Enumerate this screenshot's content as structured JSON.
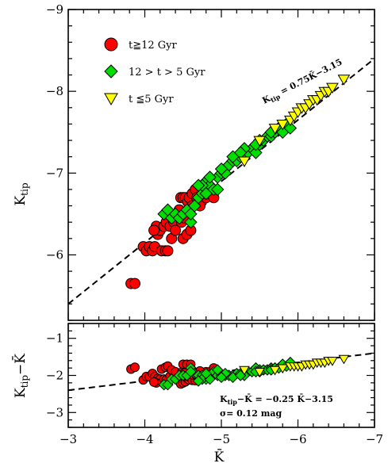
{
  "chart_data": [
    {
      "type": "scatter",
      "title": "",
      "xlabel": "K̄",
      "ylabel": "K_tip",
      "ylabel_main": "K",
      "ylabel_sub": "tip",
      "xlim": [
        -3,
        -7
      ],
      "ylim": [
        -5.2,
        -9
      ],
      "x_ticks": [
        "−3",
        "−4",
        "−5",
        "−6",
        "−7"
      ],
      "y_ticks": [
        "−9",
        "−8",
        "−7",
        "−6"
      ],
      "y_tick_values": [
        -9,
        -8,
        -7,
        -6
      ],
      "grid": false,
      "legend_position": "top-left",
      "fit_line": {
        "slope": 0.75,
        "intercept": -3.15,
        "label_main": "K",
        "label_sub": "tip",
        "label_rest": " = 0.75K̄−3.15"
      },
      "series": [
        {
          "name": "t≧12 Gyr",
          "marker": "circle",
          "color": "#ff0000",
          "x": [
            -3.82,
            -3.87,
            -3.98,
            -4.02,
            -4.06,
            -4.1,
            -4.13,
            -4.17,
            -4.2,
            -4.22,
            -4.27,
            -4.3,
            -4.15,
            -4.25,
            -4.12,
            -4.28,
            -4.33,
            -4.38,
            -4.42,
            -4.45,
            -4.47,
            -4.5,
            -4.53,
            -4.56,
            -4.58,
            -4.62,
            -4.66,
            -4.7,
            -4.74,
            -4.8,
            -4.85,
            -4.9,
            -4.5,
            -4.55,
            -4.6,
            -4.35,
            -4.4,
            -4.48,
            -4.52,
            -4.62,
            -4.68,
            -4.72
          ],
          "y": [
            -5.65,
            -5.65,
            -6.1,
            -6.05,
            -6.1,
            -6.05,
            -6.1,
            -6.25,
            -6.3,
            -6.05,
            -6.05,
            -6.05,
            -6.35,
            -6.35,
            -6.3,
            -6.4,
            -6.35,
            -6.4,
            -6.5,
            -6.55,
            -6.7,
            -6.7,
            -6.7,
            -6.65,
            -6.7,
            -6.75,
            -6.8,
            -6.7,
            -6.65,
            -6.7,
            -6.75,
            -6.7,
            -6.2,
            -6.25,
            -6.3,
            -6.2,
            -6.3,
            -6.4,
            -6.45,
            -6.6,
            -6.7,
            -6.6
          ]
        },
        {
          "name": "12 > t > 5 Gyr",
          "marker": "diamond",
          "color": "#00dd00",
          "x": [
            -4.25,
            -4.3,
            -4.35,
            -4.4,
            -4.45,
            -4.5,
            -4.55,
            -4.6,
            -4.65,
            -4.7,
            -4.75,
            -4.8,
            -4.85,
            -4.9,
            -4.95,
            -5.0,
            -5.05,
            -5.1,
            -5.15,
            -5.2,
            -5.25,
            -5.3,
            -5.35,
            -5.4,
            -5.45,
            -5.5,
            -5.55,
            -5.6,
            -5.65,
            -5.7,
            -5.75,
            -5.8,
            -5.85,
            -5.9,
            -4.75,
            -4.85,
            -4.95,
            -5.05,
            -5.15,
            -5.3,
            -5.5,
            -4.6,
            -4.7,
            -4.8,
            -5.0,
            -5.25,
            -5.45,
            -5.65
          ],
          "y": [
            -6.5,
            -6.55,
            -6.45,
            -6.5,
            -6.45,
            -6.5,
            -6.55,
            -6.4,
            -6.6,
            -6.7,
            -6.75,
            -6.9,
            -6.85,
            -6.8,
            -6.95,
            -7.0,
            -7.05,
            -7.1,
            -7.15,
            -7.15,
            -7.2,
            -7.2,
            -7.25,
            -7.3,
            -7.25,
            -7.35,
            -7.4,
            -7.45,
            -7.45,
            -7.5,
            -7.55,
            -7.5,
            -7.6,
            -7.55,
            -6.85,
            -6.95,
            -6.8,
            -7.0,
            -7.2,
            -7.3,
            -7.4,
            -6.5,
            -6.85,
            -6.75,
            -7.05,
            -7.25,
            -7.35,
            -7.5
          ]
        },
        {
          "name": "t ≦5 Gyr",
          "marker": "triangle-down",
          "color": "#ffff00",
          "x": [
            -5.3,
            -5.5,
            -5.7,
            -5.8,
            -5.9,
            -5.95,
            -6.0,
            -6.05,
            -6.1,
            -6.15,
            -6.2,
            -6.25,
            -6.3,
            -6.35,
            -6.4,
            -6.45,
            -6.6
          ],
          "y": [
            -7.15,
            -7.4,
            -7.55,
            -7.6,
            -7.65,
            -7.7,
            -7.75,
            -7.8,
            -7.8,
            -7.85,
            -7.9,
            -7.9,
            -7.95,
            -8.0,
            -8.0,
            -8.05,
            -8.15
          ]
        }
      ]
    },
    {
      "type": "scatter",
      "title": "",
      "xlabel": "K̄",
      "ylabel": "K_tip − K̄",
      "ylabel_main": "K",
      "ylabel_sub": "tip",
      "ylabel_rest": "−K̄",
      "xlim": [
        -3,
        -7
      ],
      "ylim": [
        -3.4,
        -0.6
      ],
      "x_ticks": [
        "−3",
        "−4",
        "−5",
        "−6",
        "−7"
      ],
      "y_ticks": [
        "−1",
        "−2",
        "−3"
      ],
      "y_tick_values": [
        -1,
        -2,
        -3
      ],
      "grid": false,
      "fit_line": {
        "slope": -0.25,
        "intercept": -3.15
      },
      "annotation": {
        "line1_main": "K",
        "line1_sub": "tip",
        "line1_rest": "−K̄ = −0.25 K̄−3.15",
        "line2": "σ= 0.12 mag"
      },
      "series": [
        {
          "name": "t≧12 Gyr",
          "marker": "circle",
          "color": "#ff0000",
          "x": [
            -3.82,
            -3.87,
            -3.98,
            -4.02,
            -4.06,
            -4.1,
            -4.13,
            -4.17,
            -4.2,
            -4.22,
            -4.27,
            -4.3,
            -4.15,
            -4.25,
            -4.12,
            -4.28,
            -4.33,
            -4.38,
            -4.42,
            -4.45,
            -4.47,
            -4.5,
            -4.53,
            -4.56,
            -4.58,
            -4.62,
            -4.66,
            -4.7,
            -4.74,
            -4.8,
            -4.85,
            -4.9,
            -4.5,
            -4.55,
            -4.6,
            -4.35,
            -4.4,
            -4.48,
            -4.52,
            -4.62,
            -4.68,
            -4.72
          ],
          "y": [
            -1.83,
            -1.78,
            -2.12,
            -2.03,
            -2.04,
            -1.95,
            -2.03,
            -2.08,
            -2.1,
            -1.83,
            -1.78,
            -1.75,
            -2.2,
            -2.1,
            -2.18,
            -2.12,
            -2.02,
            -2.02,
            -2.08,
            -2.1,
            -2.23,
            -2.2,
            -2.17,
            -2.09,
            -2.12,
            -2.13,
            -2.14,
            -2.0,
            -1.91,
            -1.9,
            -1.9,
            -1.8,
            -1.7,
            -1.7,
            -1.7,
            -1.85,
            -1.9,
            -1.92,
            -1.93,
            -1.98,
            -2.02,
            -1.88
          ]
        },
        {
          "name": "12 > t > 5 Gyr",
          "marker": "diamond",
          "color": "#00dd00",
          "x": [
            -4.25,
            -4.3,
            -4.35,
            -4.4,
            -4.45,
            -4.5,
            -4.55,
            -4.6,
            -4.65,
            -4.7,
            -4.75,
            -4.8,
            -4.85,
            -4.9,
            -4.95,
            -5.0,
            -5.05,
            -5.1,
            -5.15,
            -5.2,
            -5.25,
            -5.3,
            -5.35,
            -5.4,
            -5.45,
            -5.5,
            -5.55,
            -5.6,
            -5.65,
            -5.7,
            -5.75,
            -5.8,
            -5.85,
            -5.9,
            -4.75,
            -4.85,
            -4.95,
            -5.05,
            -5.15,
            -5.3,
            -5.5,
            -4.6,
            -4.7,
            -4.8,
            -5.0,
            -5.25,
            -5.45,
            -5.65
          ],
          "y": [
            -2.25,
            -2.25,
            -2.1,
            -2.1,
            -2.0,
            -2.0,
            -2.0,
            -1.8,
            -1.95,
            -2.0,
            -2.0,
            -2.1,
            -2.0,
            -1.9,
            -2.0,
            -2.0,
            -2.0,
            -2.0,
            -2.0,
            -1.95,
            -1.95,
            -1.9,
            -1.9,
            -1.9,
            -1.8,
            -1.85,
            -1.85,
            -1.85,
            -1.8,
            -1.8,
            -1.8,
            -1.7,
            -1.75,
            -1.65,
            -2.1,
            -2.1,
            -1.85,
            -1.95,
            -2.05,
            -2.0,
            -1.9,
            -1.9,
            -2.15,
            -1.95,
            -2.05,
            -2.0,
            -1.9,
            -1.85
          ]
        },
        {
          "name": "t ≦5 Gyr",
          "marker": "triangle-down",
          "color": "#ffff00",
          "x": [
            -5.3,
            -5.5,
            -5.7,
            -5.8,
            -5.9,
            -5.95,
            -6.0,
            -6.05,
            -6.1,
            -6.15,
            -6.2,
            -6.25,
            -6.3,
            -6.35,
            -6.4,
            -6.45,
            -6.6
          ],
          "y": [
            -1.85,
            -1.9,
            -1.85,
            -1.8,
            -1.75,
            -1.75,
            -1.75,
            -1.75,
            -1.7,
            -1.7,
            -1.7,
            -1.65,
            -1.65,
            -1.65,
            -1.6,
            -1.6,
            -1.55
          ]
        }
      ]
    }
  ]
}
